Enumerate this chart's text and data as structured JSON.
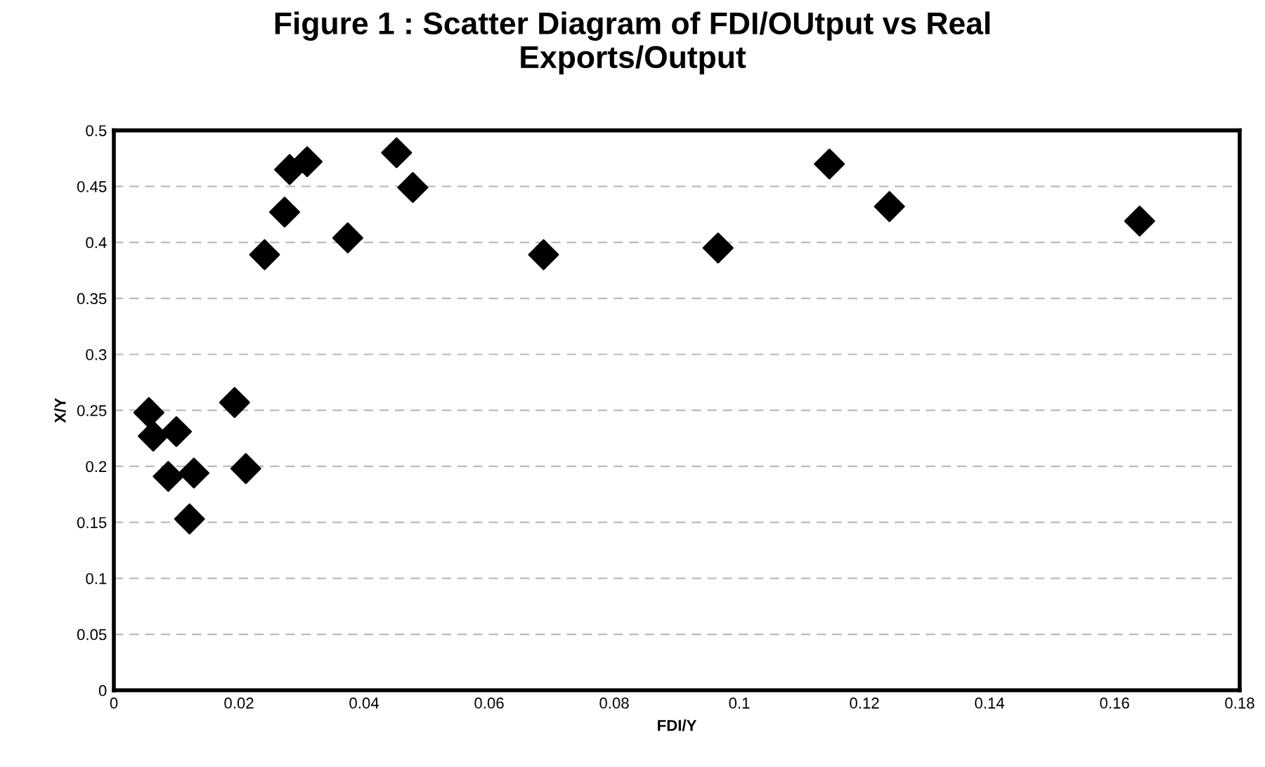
{
  "chart_data": {
    "type": "scatter",
    "title": "Figure 1 : Scatter Diagram of FDI/OUtput vs Real\nExports/Output",
    "xlabel": "FDI/Y",
    "ylabel": "X/Y",
    "series": [
      {
        "color": "#000000",
        "x": [
          0.0056,
          0.0063,
          0.01,
          0.0087,
          0.0128,
          0.0121,
          0.0193,
          0.0211,
          0.0241,
          0.0273,
          0.0281,
          0.0309,
          0.0374,
          0.0452,
          0.0478,
          0.0687,
          0.0966,
          0.1144,
          0.124,
          0.164
        ],
        "values": [
          0.248,
          0.227,
          0.231,
          0.191,
          0.194,
          0.153,
          0.257,
          0.198,
          0.389,
          0.427,
          0.465,
          0.472,
          0.404,
          0.48,
          0.449,
          0.389,
          0.395,
          0.47,
          0.432,
          0.419
        ]
      }
    ],
    "xlim": [
      0,
      0.18
    ],
    "xticks": [
      0,
      0.02,
      0.04,
      0.06,
      0.08,
      0.1,
      0.12,
      0.14,
      0.16,
      0.18
    ],
    "ylim": [
      0,
      0.5
    ],
    "yticks": [
      0,
      0.05,
      0.1,
      0.15,
      0.2,
      0.25,
      0.3,
      0.35,
      0.4,
      0.45,
      0.5
    ],
    "grid": "y",
    "marker": "diamond",
    "legend": false
  }
}
